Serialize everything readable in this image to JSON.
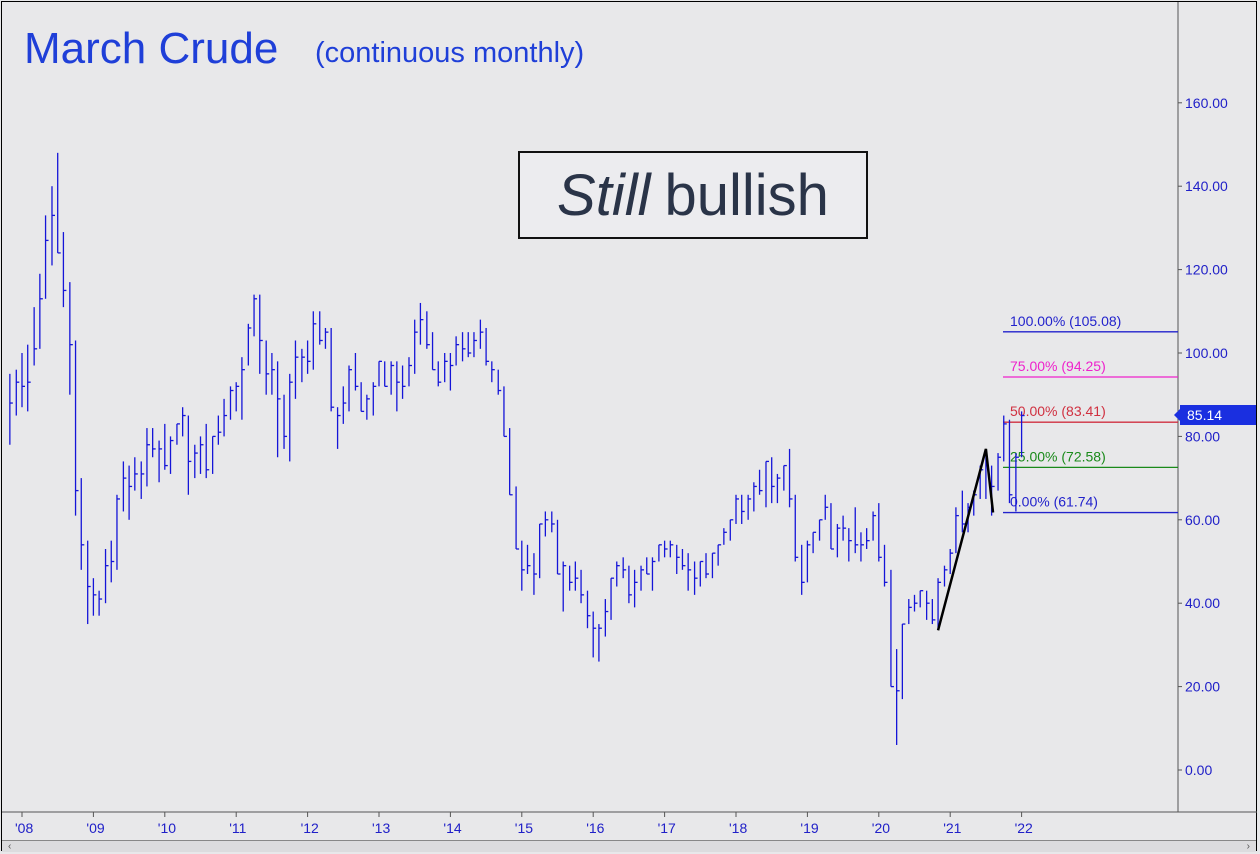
{
  "chart_data": {
    "type": "bar",
    "title": "March Crude",
    "subtitle": "(continuous monthly)",
    "annotation": {
      "italic": "Still",
      "rest": "bullish"
    },
    "last_price": "85.14",
    "ylim": [
      -10,
      180
    ],
    "y_ticks": [
      "160.00",
      "140.00",
      "120.00",
      "100.00",
      "80.00",
      "60.00",
      "40.00",
      "20.00",
      "0.00"
    ],
    "y_tick_values": [
      160,
      140,
      120,
      100,
      80,
      60,
      40,
      20,
      0
    ],
    "x_ticks": [
      "'08",
      "'09",
      "'10",
      "'11",
      "'12",
      "'13",
      "'14",
      "'15",
      "'16",
      "'17",
      "'18",
      "'19",
      "'20",
      "'21",
      "'22"
    ],
    "x_tick_years": [
      2008,
      2009,
      2010,
      2011,
      2012,
      2013,
      2014,
      2015,
      2016,
      2017,
      2018,
      2019,
      2020,
      2021,
      2022
    ],
    "fib_levels": [
      {
        "label": "100.00% (105.08)",
        "value": 105.08,
        "color": "#2222cc"
      },
      {
        "label": "75.00% (94.25)",
        "value": 94.25,
        "color": "#ee22cc"
      },
      {
        "label": "50.00% (83.41)",
        "value": 83.41,
        "color": "#d03040"
      },
      {
        "label": "25.00% (72.58)",
        "value": 72.58,
        "color": "#1a8a1a"
      },
      {
        "label": "0.00% (61.74)",
        "value": 61.74,
        "color": "#2222cc"
      }
    ],
    "abc_pattern": {
      "points": [
        [
          2020.83,
          33.5
        ],
        [
          2021.5,
          77
        ],
        [
          2021.6,
          61.74
        ]
      ]
    },
    "ohlc": [
      [
        2007.83,
        95,
        78,
        88
      ],
      [
        2007.92,
        96,
        85,
        93
      ],
      [
        2008.0,
        100,
        87,
        92
      ],
      [
        2008.08,
        102,
        86,
        93
      ],
      [
        2008.17,
        111,
        97,
        101
      ],
      [
        2008.25,
        119,
        101,
        113
      ],
      [
        2008.33,
        133,
        113,
        127
      ],
      [
        2008.42,
        140,
        121,
        133
      ],
      [
        2008.5,
        148,
        124,
        124
      ],
      [
        2008.58,
        129,
        111,
        115
      ],
      [
        2008.67,
        117,
        90,
        102
      ],
      [
        2008.75,
        103,
        61,
        67
      ],
      [
        2008.83,
        70,
        48,
        54
      ],
      [
        2008.92,
        55,
        35,
        44
      ],
      [
        2009.0,
        46,
        37,
        42
      ],
      [
        2009.08,
        43,
        37,
        41
      ],
      [
        2009.17,
        53,
        40,
        49
      ],
      [
        2009.25,
        55,
        45,
        50
      ],
      [
        2009.33,
        66,
        48,
        65
      ],
      [
        2009.42,
        74,
        62,
        70
      ],
      [
        2009.5,
        73,
        60,
        68
      ],
      [
        2009.58,
        75,
        67,
        71
      ],
      [
        2009.67,
        74,
        65,
        71
      ],
      [
        2009.75,
        82,
        68,
        78
      ],
      [
        2009.83,
        82,
        75,
        77
      ],
      [
        2009.92,
        79,
        69,
        77
      ],
      [
        2010.0,
        83,
        72,
        73
      ],
      [
        2010.08,
        80,
        71,
        79
      ],
      [
        2010.17,
        83,
        78,
        83
      ],
      [
        2010.25,
        87,
        80,
        85
      ],
      [
        2010.33,
        85,
        66,
        74
      ],
      [
        2010.42,
        78,
        70,
        76
      ],
      [
        2010.5,
        80,
        71,
        78
      ],
      [
        2010.58,
        83,
        70,
        72
      ],
      [
        2010.67,
        80,
        71,
        80
      ],
      [
        2010.75,
        85,
        78,
        81
      ],
      [
        2010.83,
        89,
        80,
        85
      ],
      [
        2010.92,
        92,
        84,
        91
      ],
      [
        2011.0,
        93,
        86,
        92
      ],
      [
        2011.08,
        99,
        84,
        96
      ],
      [
        2011.17,
        107,
        97,
        106
      ],
      [
        2011.25,
        114,
        104,
        113
      ],
      [
        2011.33,
        114,
        95,
        103
      ],
      [
        2011.42,
        103,
        90,
        95
      ],
      [
        2011.5,
        100,
        90,
        96
      ],
      [
        2011.58,
        98,
        75,
        89
      ],
      [
        2011.67,
        90,
        77,
        80
      ],
      [
        2011.75,
        95,
        74,
        93
      ],
      [
        2011.83,
        103,
        89,
        99
      ],
      [
        2011.92,
        101,
        93,
        99
      ],
      [
        2012.0,
        103,
        95,
        98
      ],
      [
        2012.08,
        110,
        96,
        107
      ],
      [
        2012.17,
        110,
        102,
        103
      ],
      [
        2012.25,
        106,
        101,
        105
      ],
      [
        2012.33,
        106,
        86,
        87
      ],
      [
        2012.42,
        87,
        77,
        85
      ],
      [
        2012.5,
        92,
        83,
        88
      ],
      [
        2012.58,
        97,
        86,
        96
      ],
      [
        2012.67,
        100,
        91,
        92
      ],
      [
        2012.75,
        93,
        86,
        86
      ],
      [
        2012.83,
        90,
        84,
        89
      ],
      [
        2012.92,
        93,
        85,
        92
      ],
      [
        2013.0,
        98,
        92,
        98
      ],
      [
        2013.08,
        98,
        92,
        92
      ],
      [
        2013.17,
        98,
        90,
        97
      ],
      [
        2013.25,
        98,
        86,
        93
      ],
      [
        2013.33,
        97,
        89,
        92
      ],
      [
        2013.42,
        99,
        92,
        97
      ],
      [
        2013.5,
        108,
        95,
        105
      ],
      [
        2013.58,
        112,
        102,
        108
      ],
      [
        2013.67,
        110,
        101,
        102
      ],
      [
        2013.75,
        105,
        96,
        96
      ],
      [
        2013.83,
        98,
        92,
        93
      ],
      [
        2013.92,
        100,
        93,
        98
      ],
      [
        2014.0,
        100,
        91,
        97
      ],
      [
        2014.08,
        104,
        97,
        102
      ],
      [
        2014.17,
        105,
        98,
        101
      ],
      [
        2014.25,
        105,
        99,
        100
      ],
      [
        2014.33,
        105,
        99,
        103
      ],
      [
        2014.42,
        108,
        101,
        105
      ],
      [
        2014.5,
        106,
        97,
        98
      ],
      [
        2014.58,
        98,
        93,
        96
      ],
      [
        2014.67,
        96,
        90,
        91
      ],
      [
        2014.75,
        92,
        80,
        80
      ],
      [
        2014.83,
        82,
        66,
        66
      ],
      [
        2014.92,
        68,
        53,
        53
      ],
      [
        2015.0,
        55,
        43,
        48
      ],
      [
        2015.08,
        54,
        47,
        49
      ],
      [
        2015.17,
        52,
        42,
        47
      ],
      [
        2015.25,
        59,
        46,
        59
      ],
      [
        2015.33,
        62,
        56,
        60
      ],
      [
        2015.42,
        62,
        57,
        59
      ],
      [
        2015.5,
        60,
        47,
        47
      ],
      [
        2015.58,
        50,
        38,
        49
      ],
      [
        2015.67,
        49,
        43,
        45
      ],
      [
        2015.75,
        50,
        43,
        46
      ],
      [
        2015.83,
        48,
        40,
        42
      ],
      [
        2015.92,
        43,
        34,
        37
      ],
      [
        2016.0,
        38,
        27,
        34
      ],
      [
        2016.08,
        35,
        26,
        34
      ],
      [
        2016.17,
        41,
        32,
        38
      ],
      [
        2016.25,
        46,
        36,
        46
      ],
      [
        2016.33,
        50,
        44,
        49
      ],
      [
        2016.42,
        51,
        46,
        48
      ],
      [
        2016.5,
        49,
        40,
        42
      ],
      [
        2016.58,
        48,
        39,
        45
      ],
      [
        2016.67,
        49,
        43,
        48
      ],
      [
        2016.75,
        51,
        47,
        47
      ],
      [
        2016.83,
        51,
        43,
        50
      ],
      [
        2016.92,
        54,
        50,
        54
      ],
      [
        2017.0,
        55,
        51,
        53
      ],
      [
        2017.08,
        55,
        51,
        54
      ],
      [
        2017.17,
        54,
        47,
        51
      ],
      [
        2017.25,
        53,
        48,
        49
      ],
      [
        2017.33,
        52,
        43,
        48
      ],
      [
        2017.42,
        50,
        42,
        46
      ],
      [
        2017.5,
        50,
        44,
        50
      ],
      [
        2017.58,
        52,
        46,
        47
      ],
      [
        2017.67,
        52,
        46,
        52
      ],
      [
        2017.75,
        54,
        49,
        54
      ],
      [
        2017.83,
        58,
        54,
        57
      ],
      [
        2017.92,
        60,
        55,
        60
      ],
      [
        2018.0,
        66,
        59,
        65
      ],
      [
        2018.08,
        66,
        59,
        62
      ],
      [
        2018.17,
        66,
        60,
        65
      ],
      [
        2018.25,
        69,
        62,
        68
      ],
      [
        2018.33,
        72,
        66,
        67
      ],
      [
        2018.42,
        74,
        63,
        74
      ],
      [
        2018.5,
        75,
        64,
        68
      ],
      [
        2018.58,
        71,
        64,
        70
      ],
      [
        2018.67,
        73,
        67,
        73
      ],
      [
        2018.75,
        77,
        63,
        65
      ],
      [
        2018.83,
        66,
        50,
        51
      ],
      [
        2018.92,
        54,
        42,
        45
      ],
      [
        2019.0,
        55,
        45,
        54
      ],
      [
        2019.08,
        57,
        52,
        57
      ],
      [
        2019.17,
        60,
        55,
        60
      ],
      [
        2019.25,
        66,
        60,
        63
      ],
      [
        2019.33,
        64,
        53,
        53
      ],
      [
        2019.42,
        59,
        51,
        58
      ],
      [
        2019.5,
        61,
        55,
        58
      ],
      [
        2019.58,
        58,
        50,
        55
      ],
      [
        2019.67,
        63,
        52,
        54
      ],
      [
        2019.75,
        57,
        50,
        54
      ],
      [
        2019.83,
        58,
        53,
        55
      ],
      [
        2019.92,
        62,
        55,
        61
      ],
      [
        2020.0,
        64,
        50,
        51
      ],
      [
        2020.08,
        54,
        44,
        45
      ],
      [
        2020.17,
        48,
        20,
        20
      ],
      [
        2020.25,
        29,
        6,
        19
      ],
      [
        2020.33,
        35,
        17,
        35
      ],
      [
        2020.42,
        41,
        35,
        39
      ],
      [
        2020.5,
        42,
        38,
        40
      ],
      [
        2020.58,
        43,
        39,
        43
      ],
      [
        2020.67,
        43,
        36,
        40
      ],
      [
        2020.75,
        41,
        35,
        36
      ],
      [
        2020.83,
        46,
        34,
        45
      ],
      [
        2020.92,
        49,
        44,
        48
      ],
      [
        2021.0,
        53,
        47,
        52
      ],
      [
        2021.08,
        63,
        52,
        61
      ],
      [
        2021.17,
        67,
        57,
        59
      ],
      [
        2021.25,
        64,
        57,
        63
      ],
      [
        2021.33,
        67,
        61,
        66
      ],
      [
        2021.42,
        73,
        65,
        72
      ],
      [
        2021.5,
        76,
        65,
        73
      ],
      [
        2021.58,
        73,
        61,
        68
      ],
      [
        2021.67,
        76,
        67,
        75
      ],
      [
        2021.75,
        85,
        74,
        83
      ],
      [
        2021.83,
        84,
        64,
        66
      ],
      [
        2021.92,
        76,
        62,
        75
      ],
      [
        2022.0,
        86,
        75,
        85
      ]
    ]
  }
}
